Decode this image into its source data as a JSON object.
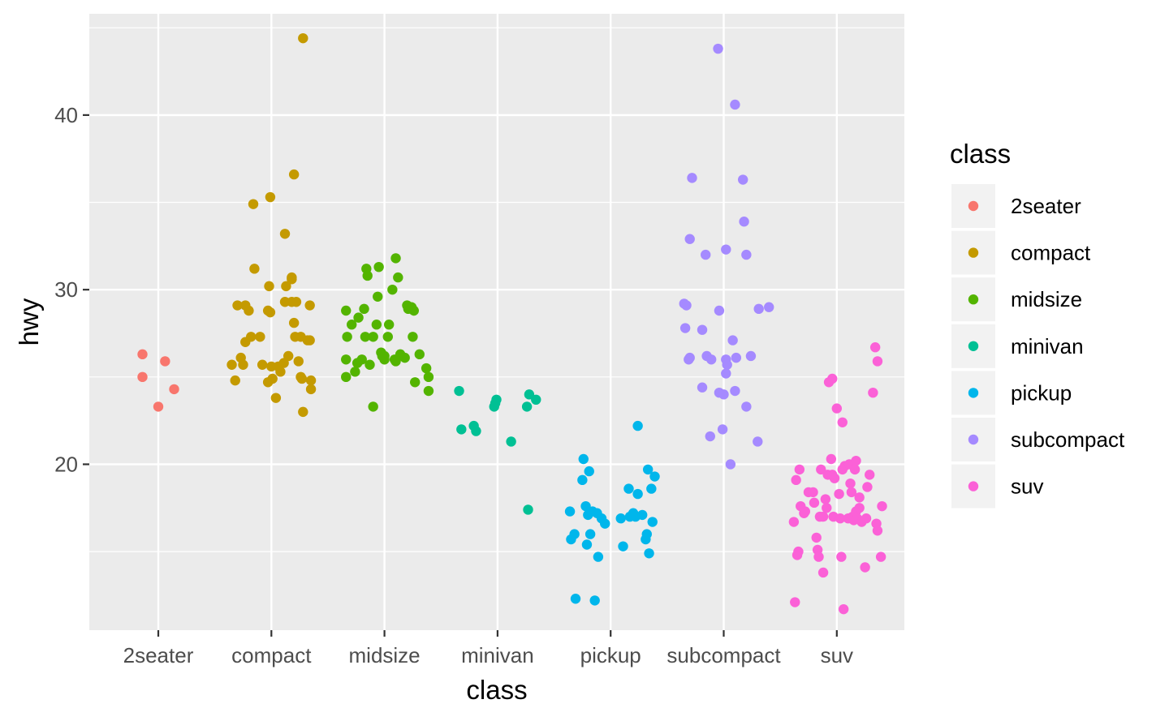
{
  "chart_data": {
    "type": "scatter",
    "title": "",
    "xlabel": "class",
    "ylabel": "hwy",
    "ylim": [
      10.5,
      45.8
    ],
    "yticks": [
      20,
      30,
      40
    ],
    "categories": [
      "2seater",
      "compact",
      "midsize",
      "minivan",
      "pickup",
      "subcompact",
      "suv"
    ],
    "grid": true,
    "legend": {
      "title": "class",
      "position": "right"
    },
    "series": [
      {
        "name": "2seater",
        "color": "#F8766D",
        "points": [
          [
            0.86,
            26.3
          ],
          [
            0.86,
            25.0
          ],
          [
            1.06,
            25.9
          ],
          [
            1.0,
            23.3
          ],
          [
            1.14,
            24.3
          ]
        ]
      },
      {
        "name": "compact",
        "color": "#C49A00",
        "points": [
          [
            1.7,
            29.1
          ],
          [
            1.77,
            29.1
          ],
          [
            1.8,
            28.8
          ],
          [
            1.82,
            27.3
          ],
          [
            1.75,
            25.7
          ],
          [
            1.65,
            25.7
          ],
          [
            1.68,
            24.8
          ],
          [
            1.73,
            26.1
          ],
          [
            1.77,
            27.0
          ],
          [
            1.92,
            25.7
          ],
          [
            1.9,
            27.3
          ],
          [
            1.97,
            28.8
          ],
          [
            1.99,
            28.7
          ],
          [
            1.98,
            30.2
          ],
          [
            1.85,
            31.2
          ],
          [
            1.84,
            34.9
          ],
          [
            1.99,
            35.3
          ],
          [
            2.0,
            25.6
          ],
          [
            2.06,
            25.6
          ],
          [
            1.97,
            24.7
          ],
          [
            2.01,
            24.9
          ],
          [
            2.04,
            23.8
          ],
          [
            2.08,
            25.3
          ],
          [
            2.11,
            25.8
          ],
          [
            2.12,
            29.3
          ],
          [
            2.12,
            33.2
          ],
          [
            2.13,
            30.2
          ],
          [
            2.18,
            30.6
          ],
          [
            2.18,
            30.7
          ],
          [
            2.15,
            26.2
          ],
          [
            2.18,
            29.3
          ],
          [
            2.2,
            28.1
          ],
          [
            2.22,
            29.3
          ],
          [
            2.21,
            27.3
          ],
          [
            2.26,
            27.3
          ],
          [
            2.26,
            25.0
          ],
          [
            2.24,
            25.9
          ],
          [
            2.27,
            24.9
          ],
          [
            2.28,
            23.0
          ],
          [
            2.32,
            27.1
          ],
          [
            2.34,
            27.1
          ],
          [
            2.34,
            29.1
          ],
          [
            2.35,
            24.3
          ],
          [
            2.35,
            24.8
          ],
          [
            2.2,
            36.6
          ],
          [
            2.28,
            44.4
          ]
        ]
      },
      {
        "name": "midsize",
        "color": "#53B400",
        "points": [
          [
            2.66,
            28.8
          ],
          [
            2.67,
            27.3
          ],
          [
            2.66,
            26.0
          ],
          [
            2.66,
            25.0
          ],
          [
            2.71,
            28.0
          ],
          [
            2.74,
            25.3
          ],
          [
            2.76,
            25.8
          ],
          [
            2.77,
            28.4
          ],
          [
            2.8,
            26.0
          ],
          [
            2.82,
            28.9
          ],
          [
            2.83,
            27.3
          ],
          [
            2.84,
            31.2
          ],
          [
            2.85,
            30.8
          ],
          [
            2.87,
            25.7
          ],
          [
            2.9,
            27.3
          ],
          [
            2.9,
            23.3
          ],
          [
            2.93,
            28.0
          ],
          [
            2.94,
            29.6
          ],
          [
            2.95,
            31.3
          ],
          [
            2.97,
            26.4
          ],
          [
            2.98,
            26.2
          ],
          [
            3.0,
            26.2
          ],
          [
            3.0,
            26.0
          ],
          [
            3.03,
            27.3
          ],
          [
            3.04,
            28.0
          ],
          [
            3.07,
            30.0
          ],
          [
            3.09,
            26.0
          ],
          [
            3.1,
            31.8
          ],
          [
            3.1,
            25.9
          ],
          [
            3.12,
            30.7
          ],
          [
            3.14,
            26.3
          ],
          [
            3.18,
            26.1
          ],
          [
            3.2,
            29.1
          ],
          [
            3.21,
            28.9
          ],
          [
            3.24,
            29.0
          ],
          [
            3.25,
            27.3
          ],
          [
            3.26,
            28.8
          ],
          [
            3.27,
            24.7
          ],
          [
            3.31,
            26.3
          ],
          [
            3.37,
            25.5
          ],
          [
            3.39,
            25.0
          ],
          [
            3.39,
            24.2
          ]
        ]
      },
      {
        "name": "minivan",
        "color": "#00C094",
        "points": [
          [
            3.66,
            24.2
          ],
          [
            3.68,
            22.0
          ],
          [
            3.79,
            22.2
          ],
          [
            3.81,
            21.9
          ],
          [
            3.97,
            23.3
          ],
          [
            3.98,
            23.5
          ],
          [
            3.99,
            23.7
          ],
          [
            4.12,
            21.3
          ],
          [
            4.26,
            23.3
          ],
          [
            4.28,
            24.0
          ],
          [
            4.34,
            23.7
          ],
          [
            4.27,
            17.4
          ]
        ]
      },
      {
        "name": "pickup",
        "color": "#00B6EB",
        "points": [
          [
            4.64,
            17.3
          ],
          [
            4.65,
            15.7
          ],
          [
            4.68,
            16.0
          ],
          [
            4.69,
            12.3
          ],
          [
            4.75,
            19.1
          ],
          [
            4.76,
            20.3
          ],
          [
            4.78,
            17.6
          ],
          [
            4.79,
            15.4
          ],
          [
            4.8,
            17.1
          ],
          [
            4.81,
            19.6
          ],
          [
            4.82,
            16.0
          ],
          [
            4.84,
            17.3
          ],
          [
            4.86,
            12.2
          ],
          [
            4.88,
            17.2
          ],
          [
            4.89,
            14.7
          ],
          [
            4.92,
            16.9
          ],
          [
            4.95,
            16.6
          ],
          [
            5.09,
            16.9
          ],
          [
            5.11,
            15.3
          ],
          [
            5.16,
            18.6
          ],
          [
            5.17,
            17.0
          ],
          [
            5.2,
            17.2
          ],
          [
            5.22,
            17.0
          ],
          [
            5.24,
            18.3
          ],
          [
            5.24,
            22.2
          ],
          [
            5.28,
            17.1
          ],
          [
            5.31,
            15.7
          ],
          [
            5.32,
            16.0
          ],
          [
            5.33,
            19.7
          ],
          [
            5.34,
            14.9
          ],
          [
            5.36,
            18.6
          ],
          [
            5.37,
            16.7
          ],
          [
            5.39,
            19.3
          ]
        ]
      },
      {
        "name": "subcompact",
        "color": "#A58AFF",
        "points": [
          [
            5.65,
            29.2
          ],
          [
            5.66,
            27.8
          ],
          [
            5.67,
            29.1
          ],
          [
            5.7,
            32.9
          ],
          [
            5.69,
            26.0
          ],
          [
            5.72,
            36.4
          ],
          [
            5.7,
            26.1
          ],
          [
            5.81,
            27.7
          ],
          [
            5.81,
            24.4
          ],
          [
            5.85,
            26.2
          ],
          [
            5.84,
            32.0
          ],
          [
            5.88,
            21.6
          ],
          [
            5.89,
            26.0
          ],
          [
            5.95,
            43.8
          ],
          [
            5.96,
            24.1
          ],
          [
            5.96,
            28.8
          ],
          [
            6.0,
            24.0
          ],
          [
            5.99,
            22.0
          ],
          [
            6.02,
            25.2
          ],
          [
            6.02,
            26.0
          ],
          [
            6.03,
            25.7
          ],
          [
            6.02,
            32.3
          ],
          [
            6.06,
            20.0
          ],
          [
            6.08,
            27.1
          ],
          [
            6.1,
            40.6
          ],
          [
            6.1,
            24.2
          ],
          [
            6.11,
            26.1
          ],
          [
            6.17,
            36.3
          ],
          [
            6.18,
            33.9
          ],
          [
            6.2,
            32.0
          ],
          [
            6.2,
            23.3
          ],
          [
            6.24,
            26.2
          ],
          [
            6.3,
            21.3
          ],
          [
            6.31,
            28.9
          ],
          [
            6.4,
            29.0
          ]
        ]
      },
      {
        "name": "suv",
        "color": "#FB61D7",
        "points": [
          [
            6.62,
            16.7
          ],
          [
            6.63,
            12.1
          ],
          [
            6.64,
            19.1
          ],
          [
            6.65,
            14.8
          ],
          [
            6.66,
            15.0
          ],
          [
            6.67,
            19.7
          ],
          [
            6.68,
            17.6
          ],
          [
            6.71,
            17.2
          ],
          [
            6.72,
            17.3
          ],
          [
            6.75,
            18.4
          ],
          [
            6.79,
            18.4
          ],
          [
            6.8,
            17.8
          ],
          [
            6.82,
            15.8
          ],
          [
            6.83,
            15.1
          ],
          [
            6.84,
            14.7
          ],
          [
            6.86,
            19.7
          ],
          [
            6.85,
            17.0
          ],
          [
            6.88,
            13.8
          ],
          [
            6.88,
            17.0
          ],
          [
            6.9,
            18.0
          ],
          [
            6.91,
            17.5
          ],
          [
            6.92,
            19.4
          ],
          [
            6.95,
            20.3
          ],
          [
            6.96,
            19.4
          ],
          [
            6.97,
            17.0
          ],
          [
            6.98,
            19.2
          ],
          [
            7.0,
            23.2
          ],
          [
            7.02,
            18.3
          ],
          [
            7.03,
            16.9
          ],
          [
            7.04,
            14.7
          ],
          [
            7.05,
            19.7
          ],
          [
            7.05,
            22.4
          ],
          [
            7.06,
            11.7
          ],
          [
            7.07,
            19.9
          ],
          [
            7.1,
            16.9
          ],
          [
            7.11,
            20.0
          ],
          [
            7.12,
            18.9
          ],
          [
            7.13,
            18.4
          ],
          [
            7.14,
            17.0
          ],
          [
            7.15,
            16.8
          ],
          [
            7.16,
            19.7
          ],
          [
            7.17,
            20.2
          ],
          [
            7.17,
            17.3
          ],
          [
            7.18,
            16.9
          ],
          [
            7.2,
            18.1
          ],
          [
            7.2,
            17.5
          ],
          [
            7.22,
            16.7
          ],
          [
            7.25,
            14.1
          ],
          [
            7.26,
            16.9
          ],
          [
            7.27,
            18.7
          ],
          [
            7.29,
            19.4
          ],
          [
            7.32,
            24.1
          ],
          [
            7.35,
            16.6
          ],
          [
            7.36,
            16.2
          ],
          [
            7.39,
            14.7
          ],
          [
            7.4,
            17.6
          ],
          [
            7.36,
            25.9
          ],
          [
            7.34,
            26.7
          ],
          [
            6.93,
            24.7
          ],
          [
            6.96,
            24.9
          ]
        ]
      }
    ]
  }
}
